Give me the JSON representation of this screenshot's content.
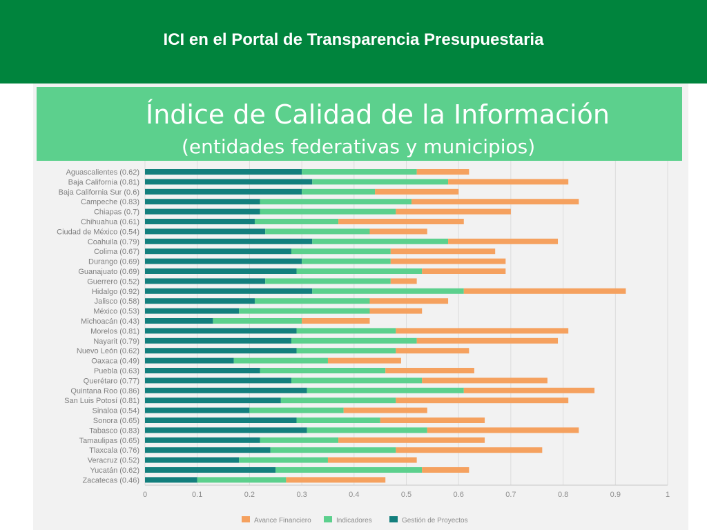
{
  "slide": {
    "title": "ICI en el Portal de Transparencia Presupuestaria"
  },
  "colors": {
    "header_bg": "#00843d",
    "banner_bg": "#5cd08d",
    "gestion": "#137f7d",
    "indicadores": "#5cd08d",
    "avance": "#f5a15f"
  },
  "chart_data": {
    "type": "bar",
    "orientation": "horizontal",
    "stacked": true,
    "title": "Índice de Calidad de la Información",
    "subtitle": "(entidades federativas y municipios)",
    "categories": [
      "Aguascalientes (0.62)",
      "Baja California (0.81)",
      "Baja California Sur (0.6)",
      "Campeche (0.83)",
      "Chiapas (0.7)",
      "Chihuahua (0.61)",
      "Ciudad de México (0.54)",
      "Coahuila (0.79)",
      "Colima (0.67)",
      "Durango (0.69)",
      "Guanajuato (0.69)",
      "Guerrero (0.52)",
      "Hidalgo (0.92)",
      "Jalisco (0.58)",
      "México (0.53)",
      "Michoacán (0.43)",
      "Morelos (0.81)",
      "Nayarit (0.79)",
      "Nuevo León (0.62)",
      "Oaxaca (0.49)",
      "Puebla (0.63)",
      "Querétaro (0.77)",
      "Quintana Roo (0.86)",
      "San Luis Potosí (0.81)",
      "Sinaloa (0.54)",
      "Sonora (0.65)",
      "Tabasco (0.83)",
      "Tamaulipas (0.65)",
      "Tlaxcala (0.76)",
      "Veracruz (0.52)",
      "Yucatán (0.62)",
      "Zacatecas (0.46)"
    ],
    "series": [
      {
        "name": "Gestión de Proyectos",
        "values": [
          0.3,
          0.32,
          0.3,
          0.22,
          0.22,
          0.21,
          0.23,
          0.32,
          0.28,
          0.3,
          0.29,
          0.23,
          0.32,
          0.21,
          0.18,
          0.13,
          0.29,
          0.28,
          0.29,
          0.17,
          0.22,
          0.28,
          0.31,
          0.26,
          0.2,
          0.29,
          0.31,
          0.22,
          0.24,
          0.18,
          0.25,
          0.1
        ]
      },
      {
        "name": "Indicadores",
        "values": [
          0.22,
          0.26,
          0.14,
          0.29,
          0.26,
          0.16,
          0.2,
          0.26,
          0.19,
          0.17,
          0.24,
          0.24,
          0.29,
          0.22,
          0.25,
          0.17,
          0.19,
          0.24,
          0.19,
          0.18,
          0.24,
          0.25,
          0.3,
          0.22,
          0.18,
          0.16,
          0.23,
          0.15,
          0.24,
          0.17,
          0.28,
          0.17
        ]
      },
      {
        "name": "Avance Financiero",
        "values": [
          0.1,
          0.23,
          0.16,
          0.32,
          0.22,
          0.24,
          0.11,
          0.21,
          0.2,
          0.22,
          0.16,
          0.05,
          0.31,
          0.15,
          0.1,
          0.13,
          0.33,
          0.27,
          0.14,
          0.14,
          0.17,
          0.24,
          0.25,
          0.33,
          0.16,
          0.2,
          0.29,
          0.28,
          0.28,
          0.17,
          0.09,
          0.19
        ]
      }
    ],
    "xlim": [
      0,
      1
    ],
    "xticks": [
      "0",
      "0.1",
      "0.2",
      "0.3",
      "0.4",
      "0.5",
      "0.6",
      "0.7",
      "0.8",
      "0.9",
      "1"
    ],
    "grid": true,
    "legend_position": "bottom",
    "legend": [
      "Avance Financiero",
      "Indicadores",
      "Gestión de Proyectos"
    ]
  }
}
